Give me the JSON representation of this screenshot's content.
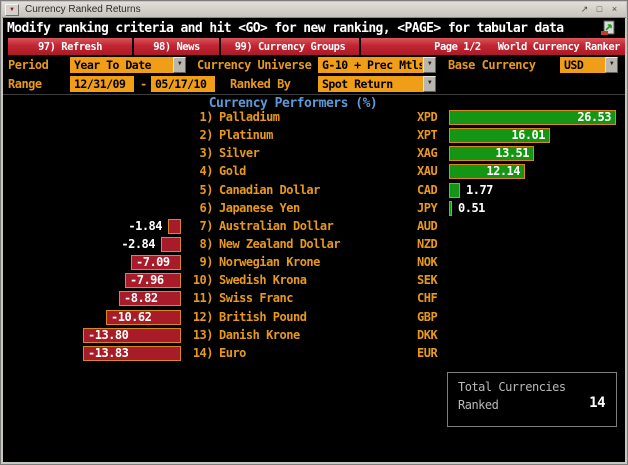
{
  "colors": {
    "accent_orange": "#e8991c",
    "field_orange": "#f09d18",
    "menu_red": "#c22532",
    "positive_green": "#149614",
    "negative_red": "#a81b28",
    "bar_border": "#d8881c",
    "header_blue": "#5e9ad8"
  },
  "window": {
    "title": "Currency Ranked Returns",
    "menu_glyph": "▼",
    "restore_glyph": "↗",
    "maximize_glyph": "□",
    "close_glyph": "×"
  },
  "message_bar": {
    "text": "Modify ranking criteria and hit <GO> for new ranking, <PAGE> for tabular data"
  },
  "menu_bar": {
    "buttons": [
      {
        "label": "97) Refresh"
      },
      {
        "label": "98) News"
      },
      {
        "label": "99) Currency Groups"
      }
    ],
    "page_indicator": "Page 1/2",
    "app_title": "World Currency Ranker"
  },
  "filters": {
    "period": {
      "label": "Period",
      "value": "Year To Date"
    },
    "currency_universe": {
      "label": "Currency Universe",
      "value": "G-10 + Prec Mtls"
    },
    "base_currency": {
      "label": "Base Currency",
      "value": "USD"
    },
    "range": {
      "label": "Range",
      "from": "12/31/09",
      "separator": "-",
      "to": "05/17/10"
    },
    "ranked_by": {
      "label": "Ranked By",
      "value": "Spot Return"
    }
  },
  "chart_data": {
    "type": "bar",
    "orientation": "horizontal",
    "title": "Currency Performers  (%)",
    "unit": "%",
    "rows": [
      {
        "rank": "1)",
        "name": "Palladium",
        "ticker": "XPD",
        "value": 26.53
      },
      {
        "rank": "2)",
        "name": "Platinum",
        "ticker": "XPT",
        "value": 16.01
      },
      {
        "rank": "3)",
        "name": "Silver",
        "ticker": "XAG",
        "value": 13.51
      },
      {
        "rank": "4)",
        "name": "Gold",
        "ticker": "XAU",
        "value": 12.14
      },
      {
        "rank": "5)",
        "name": "Canadian Dollar",
        "ticker": "CAD",
        "value": 1.77
      },
      {
        "rank": "6)",
        "name": "Japanese Yen",
        "ticker": "JPY",
        "value": 0.51
      },
      {
        "rank": "7)",
        "name": "Australian Dollar",
        "ticker": "AUD",
        "value": -1.84
      },
      {
        "rank": "8)",
        "name": "New Zealand Dollar",
        "ticker": "NZD",
        "value": -2.84
      },
      {
        "rank": "9)",
        "name": "Norwegian Krone",
        "ticker": "NOK",
        "value": -7.09
      },
      {
        "rank": "10)",
        "name": "Swedish Krona",
        "ticker": "SEK",
        "value": -7.96
      },
      {
        "rank": "11)",
        "name": "Swiss Franc",
        "ticker": "CHF",
        "value": -8.82
      },
      {
        "rank": "12)",
        "name": "British Pound",
        "ticker": "GBP",
        "value": -10.62
      },
      {
        "rank": "13)",
        "name": "Danish Krone",
        "ticker": "DKK",
        "value": -13.8
      },
      {
        "rank": "14)",
        "name": "Euro",
        "ticker": "EUR",
        "value": -13.83
      }
    ]
  },
  "summary": {
    "label_line1": "Total Currencies",
    "label_line2": "Ranked",
    "value": "14"
  },
  "ui": {
    "dropdown_glyph": "▼"
  }
}
